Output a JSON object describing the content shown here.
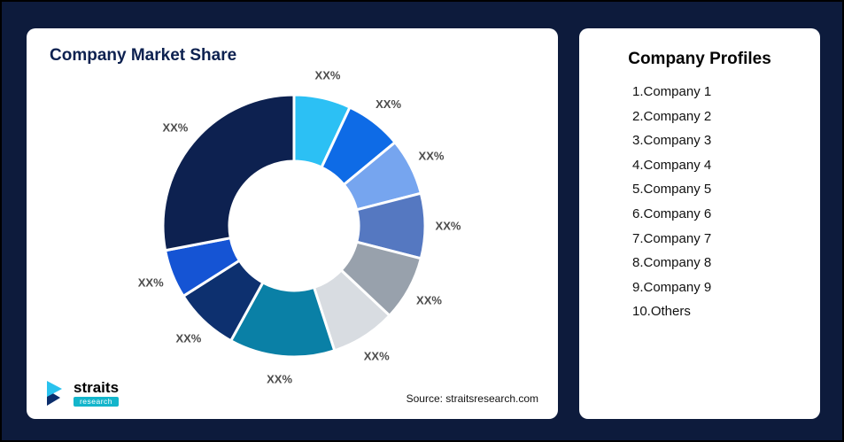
{
  "page": {
    "background_color": "#0d1b3c",
    "card_color": "#ffffff"
  },
  "market_share_card": {
    "title": "Company Market Share",
    "source": "Source: straitsresearch.com",
    "logo": {
      "name": "straits",
      "sub": "research",
      "mark_color_top": "#29c2ee",
      "mark_color_bottom": "#0b2d6b",
      "sub_bg_color": "#13b5cb"
    }
  },
  "profiles_card": {
    "title": "Company Profiles",
    "items": [
      "1.Company 1",
      "2.Company 2",
      "3.Company 3",
      "4.Company 4",
      "5.Company 5",
      "6.Company 6",
      "7.Company 7",
      "8.Company 8",
      "9.Company 9",
      "10.Others"
    ]
  },
  "chart_data": {
    "type": "pie",
    "variant": "donut",
    "title": "Company Market Share",
    "legend_position": "none",
    "inner_radius_ratio": 0.49,
    "start_angle_deg": 0,
    "direction": "clockwise",
    "categories": [
      "Company 1",
      "Company 2",
      "Company 3",
      "Company 4",
      "Company 5",
      "Company 6",
      "Company 7",
      "Company 8",
      "Company 9",
      "Others"
    ],
    "labels": [
      "XX%",
      "XX%",
      "XX%",
      "XX%",
      "XX%",
      "XX%",
      "XX%",
      "XX%",
      "XX%",
      "XX%"
    ],
    "values": [
      7,
      7,
      7,
      8,
      8,
      8,
      13,
      8,
      6,
      28
    ],
    "values_estimated_from_arc_angles": true,
    "colors": [
      "#2cc0f4",
      "#0e6be6",
      "#76a5ef",
      "#5578c1",
      "#98a1ac",
      "#d8dce1",
      "#0a80a6",
      "#0d306f",
      "#1554d4",
      "#0d2150"
    ]
  }
}
